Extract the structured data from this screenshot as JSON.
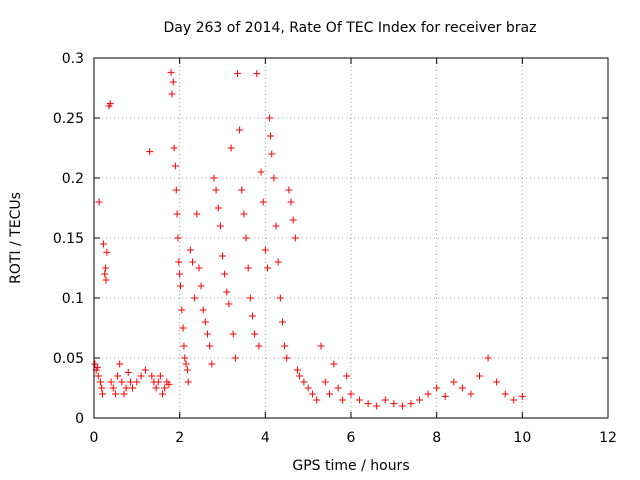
{
  "chart_data": {
    "type": "scatter",
    "title": "Day 263 of 2014, Rate Of TEC Index for receiver braz",
    "xlabel": "GPS time / hours",
    "ylabel": "ROTI / TECUs",
    "xlim": [
      0,
      12
    ],
    "ylim": [
      0,
      0.3
    ],
    "xticks": [
      0,
      2,
      4,
      6,
      8,
      10,
      12
    ],
    "yticks": [
      0,
      0.05,
      0.1,
      0.15,
      0.2,
      0.25,
      0.3
    ],
    "xtick_labels": [
      "0",
      "2",
      "4",
      "6",
      "8",
      "10",
      "12"
    ],
    "ytick_labels": [
      "0",
      "0.05",
      "0.1",
      "0.15",
      "0.2",
      "0.25",
      "0.3"
    ],
    "grid": true,
    "marker": "+",
    "color": "#ff0000",
    "series": [
      {
        "name": "ROTI",
        "points": [
          [
            0.02,
            0.045
          ],
          [
            0.05,
            0.04
          ],
          [
            0.08,
            0.042
          ],
          [
            0.1,
            0.035
          ],
          [
            0.12,
            0.18
          ],
          [
            0.15,
            0.03
          ],
          [
            0.18,
            0.025
          ],
          [
            0.2,
            0.02
          ],
          [
            0.22,
            0.145
          ],
          [
            0.25,
            0.12
          ],
          [
            0.27,
            0.125
          ],
          [
            0.28,
            0.115
          ],
          [
            0.3,
            0.138
          ],
          [
            0.35,
            0.26
          ],
          [
            0.38,
            0.262
          ],
          [
            0.4,
            0.03
          ],
          [
            0.45,
            0.025
          ],
          [
            0.5,
            0.02
          ],
          [
            0.55,
            0.035
          ],
          [
            0.6,
            0.045
          ],
          [
            0.65,
            0.03
          ],
          [
            0.7,
            0.02
          ],
          [
            0.75,
            0.025
          ],
          [
            0.8,
            0.038
          ],
          [
            0.85,
            0.03
          ],
          [
            0.9,
            0.025
          ],
          [
            1.0,
            0.03
          ],
          [
            1.1,
            0.035
          ],
          [
            1.2,
            0.04
          ],
          [
            1.3,
            0.222
          ],
          [
            1.35,
            0.035
          ],
          [
            1.4,
            0.03
          ],
          [
            1.45,
            0.025
          ],
          [
            1.5,
            0.03
          ],
          [
            1.55,
            0.035
          ],
          [
            1.6,
            0.02
          ],
          [
            1.65,
            0.025
          ],
          [
            1.7,
            0.03
          ],
          [
            1.75,
            0.028
          ],
          [
            1.8,
            0.288
          ],
          [
            1.82,
            0.27
          ],
          [
            1.85,
            0.28
          ],
          [
            1.87,
            0.225
          ],
          [
            1.9,
            0.21
          ],
          [
            1.92,
            0.19
          ],
          [
            1.94,
            0.17
          ],
          [
            1.96,
            0.15
          ],
          [
            1.98,
            0.13
          ],
          [
            2.0,
            0.12
          ],
          [
            2.02,
            0.11
          ],
          [
            2.05,
            0.09
          ],
          [
            2.08,
            0.075
          ],
          [
            2.1,
            0.06
          ],
          [
            2.12,
            0.05
          ],
          [
            2.15,
            0.045
          ],
          [
            2.18,
            0.04
          ],
          [
            2.2,
            0.03
          ],
          [
            2.25,
            0.14
          ],
          [
            2.3,
            0.13
          ],
          [
            2.35,
            0.1
          ],
          [
            2.4,
            0.17
          ],
          [
            2.45,
            0.125
          ],
          [
            2.5,
            0.11
          ],
          [
            2.55,
            0.09
          ],
          [
            2.6,
            0.08
          ],
          [
            2.65,
            0.07
          ],
          [
            2.7,
            0.06
          ],
          [
            2.75,
            0.045
          ],
          [
            2.8,
            0.2
          ],
          [
            2.85,
            0.19
          ],
          [
            2.9,
            0.175
          ],
          [
            2.95,
            0.16
          ],
          [
            3.0,
            0.135
          ],
          [
            3.05,
            0.12
          ],
          [
            3.1,
            0.105
          ],
          [
            3.15,
            0.095
          ],
          [
            3.2,
            0.225
          ],
          [
            3.25,
            0.07
          ],
          [
            3.3,
            0.05
          ],
          [
            3.35,
            0.287
          ],
          [
            3.4,
            0.24
          ],
          [
            3.45,
            0.19
          ],
          [
            3.5,
            0.17
          ],
          [
            3.55,
            0.15
          ],
          [
            3.6,
            0.125
          ],
          [
            3.65,
            0.1
          ],
          [
            3.7,
            0.085
          ],
          [
            3.75,
            0.07
          ],
          [
            3.8,
            0.287
          ],
          [
            3.85,
            0.06
          ],
          [
            3.9,
            0.205
          ],
          [
            3.95,
            0.18
          ],
          [
            4.0,
            0.14
          ],
          [
            4.05,
            0.125
          ],
          [
            4.1,
            0.25
          ],
          [
            4.12,
            0.235
          ],
          [
            4.15,
            0.22
          ],
          [
            4.2,
            0.2
          ],
          [
            4.25,
            0.16
          ],
          [
            4.3,
            0.13
          ],
          [
            4.35,
            0.1
          ],
          [
            4.4,
            0.08
          ],
          [
            4.45,
            0.06
          ],
          [
            4.5,
            0.05
          ],
          [
            4.55,
            0.19
          ],
          [
            4.6,
            0.18
          ],
          [
            4.65,
            0.165
          ],
          [
            4.7,
            0.15
          ],
          [
            4.75,
            0.04
          ],
          [
            4.8,
            0.035
          ],
          [
            4.9,
            0.03
          ],
          [
            5.0,
            0.025
          ],
          [
            5.1,
            0.02
          ],
          [
            5.2,
            0.015
          ],
          [
            5.3,
            0.06
          ],
          [
            5.4,
            0.03
          ],
          [
            5.5,
            0.02
          ],
          [
            5.6,
            0.045
          ],
          [
            5.7,
            0.025
          ],
          [
            5.8,
            0.015
          ],
          [
            5.9,
            0.035
          ],
          [
            6.0,
            0.02
          ],
          [
            6.2,
            0.015
          ],
          [
            6.4,
            0.012
          ],
          [
            6.6,
            0.01
          ],
          [
            6.8,
            0.015
          ],
          [
            7.0,
            0.012
          ],
          [
            7.2,
            0.01
          ],
          [
            7.4,
            0.012
          ],
          [
            7.6,
            0.015
          ],
          [
            7.8,
            0.02
          ],
          [
            8.0,
            0.025
          ],
          [
            8.2,
            0.018
          ],
          [
            8.4,
            0.03
          ],
          [
            8.6,
            0.025
          ],
          [
            8.8,
            0.02
          ],
          [
            9.0,
            0.035
          ],
          [
            9.2,
            0.05
          ],
          [
            9.4,
            0.03
          ],
          [
            9.6,
            0.02
          ],
          [
            9.8,
            0.015
          ],
          [
            10.0,
            0.018
          ]
        ]
      }
    ]
  }
}
